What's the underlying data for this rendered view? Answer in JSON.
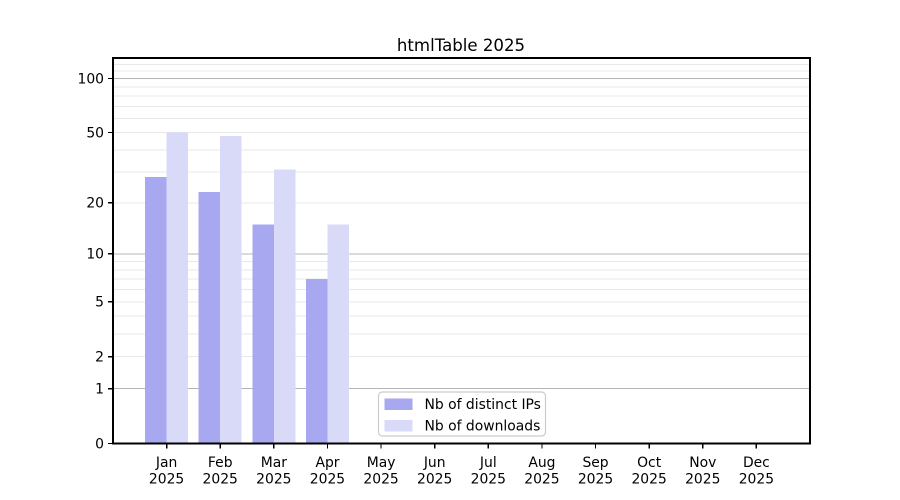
{
  "chart_data": {
    "type": "bar",
    "title": "htmlTable 2025",
    "categories": [
      "Jan",
      "Feb",
      "Mar",
      "Apr",
      "May",
      "Jun",
      "Jul",
      "Aug",
      "Sep",
      "Oct",
      "Nov",
      "Dec"
    ],
    "category_year": "2025",
    "series": [
      {
        "name": "Nb of distinct IPs",
        "color": "#a8a8f0",
        "values": [
          28,
          23,
          15,
          7,
          0,
          0,
          0,
          0,
          0,
          0,
          0,
          0
        ]
      },
      {
        "name": "Nb of downloads",
        "color": "#d9d9f8",
        "values": [
          50,
          48,
          31,
          15,
          0,
          0,
          0,
          0,
          0,
          0,
          0,
          0
        ]
      }
    ],
    "xlabel": "",
    "ylabel": "",
    "yscale": "log1p",
    "ylim": [
      0,
      130
    ],
    "ytick_labels": [
      "0",
      "1",
      "2",
      "5",
      "10",
      "20",
      "50",
      "100"
    ],
    "ytick_values": [
      0,
      1,
      2,
      5,
      10,
      20,
      50,
      100
    ],
    "major_grid_values": [
      1,
      10,
      100
    ],
    "minor_grid_values": [
      2,
      3,
      4,
      5,
      6,
      7,
      8,
      9,
      20,
      30,
      40,
      50,
      60,
      70,
      80,
      90,
      110,
      120,
      130
    ],
    "grid": true,
    "legend_position": "lower center",
    "colors": {
      "bar_ips": "#a8a8f0",
      "bar_downloads": "#d9d9f8",
      "major_grid": "#b4b4b4",
      "minor_grid": "#e8e8e8",
      "axis": "#000000",
      "legend_border": "#cccccc"
    }
  }
}
